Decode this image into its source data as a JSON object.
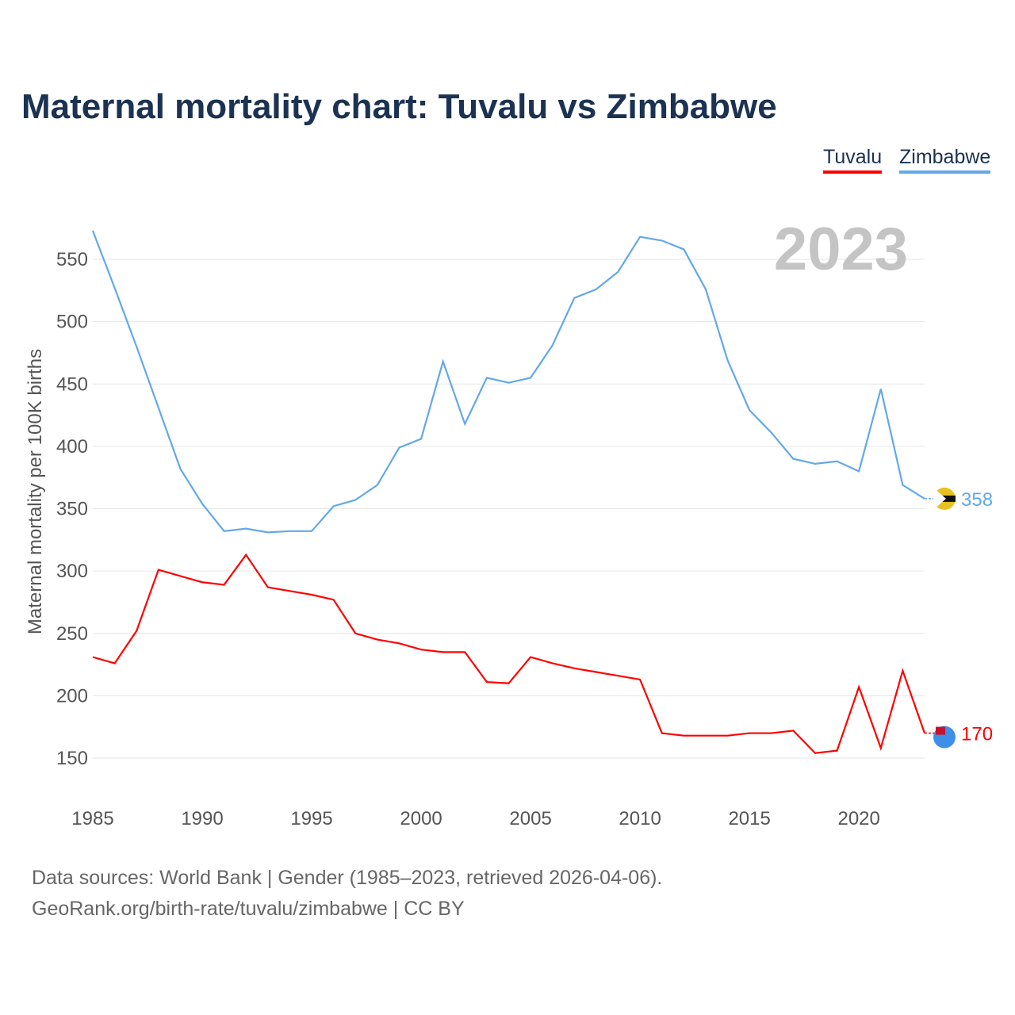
{
  "title": "Maternal mortality chart: Tuvalu vs Zimbabwe",
  "footer": {
    "line1": "Data sources: World Bank | Gender (1985–2023, retrieved 2026-04-06).",
    "line2": "GeoRank.org/birth-rate/tuvalu/zimbabwe | CC BY"
  },
  "chart_data": {
    "type": "line",
    "title": "Maternal mortality chart: Tuvalu vs Zimbabwe",
    "ylabel": "Maternal mortality per 100K births",
    "xlabel": "",
    "year_label": "2023",
    "xlim": [
      1985,
      2023
    ],
    "ylim": [
      150,
      550
    ],
    "x_ticks": [
      1985,
      1990,
      1995,
      2000,
      2005,
      2010,
      2015,
      2020
    ],
    "y_ticks": [
      150,
      200,
      250,
      300,
      350,
      400,
      450,
      500,
      550
    ],
    "grid": true,
    "legend": "top-right",
    "x": [
      1985,
      1986,
      1987,
      1988,
      1989,
      1990,
      1991,
      1992,
      1993,
      1994,
      1995,
      1996,
      1997,
      1998,
      1999,
      2000,
      2001,
      2002,
      2003,
      2004,
      2005,
      2006,
      2007,
      2008,
      2009,
      2010,
      2011,
      2012,
      2013,
      2014,
      2015,
      2016,
      2017,
      2018,
      2019,
      2020,
      2021,
      2022,
      2023
    ],
    "series": [
      {
        "name": "Tuvalu",
        "color": "#ff0000",
        "end_label": "170",
        "icon": "tuvalu-flag-icon",
        "values": [
          231,
          226,
          252,
          301,
          296,
          291,
          289,
          313,
          287,
          284,
          281,
          277,
          250,
          245,
          242,
          237,
          235,
          235,
          211,
          210,
          231,
          226,
          222,
          219,
          216,
          213,
          170,
          168,
          168,
          168,
          170,
          170,
          172,
          154,
          156,
          207,
          158,
          220,
          170
        ]
      },
      {
        "name": "Zimbabwe",
        "color": "#62a8ea",
        "end_label": "358",
        "icon": "zimbabwe-flag-icon",
        "values": [
          573,
          527,
          480,
          431,
          382,
          354,
          332,
          334,
          331,
          332,
          332,
          352,
          357,
          369,
          399,
          406,
          468,
          418,
          455,
          451,
          455,
          481,
          519,
          526,
          540,
          568,
          565,
          558,
          526,
          469,
          429,
          411,
          390,
          386,
          388,
          380,
          446,
          369,
          358
        ]
      }
    ]
  }
}
